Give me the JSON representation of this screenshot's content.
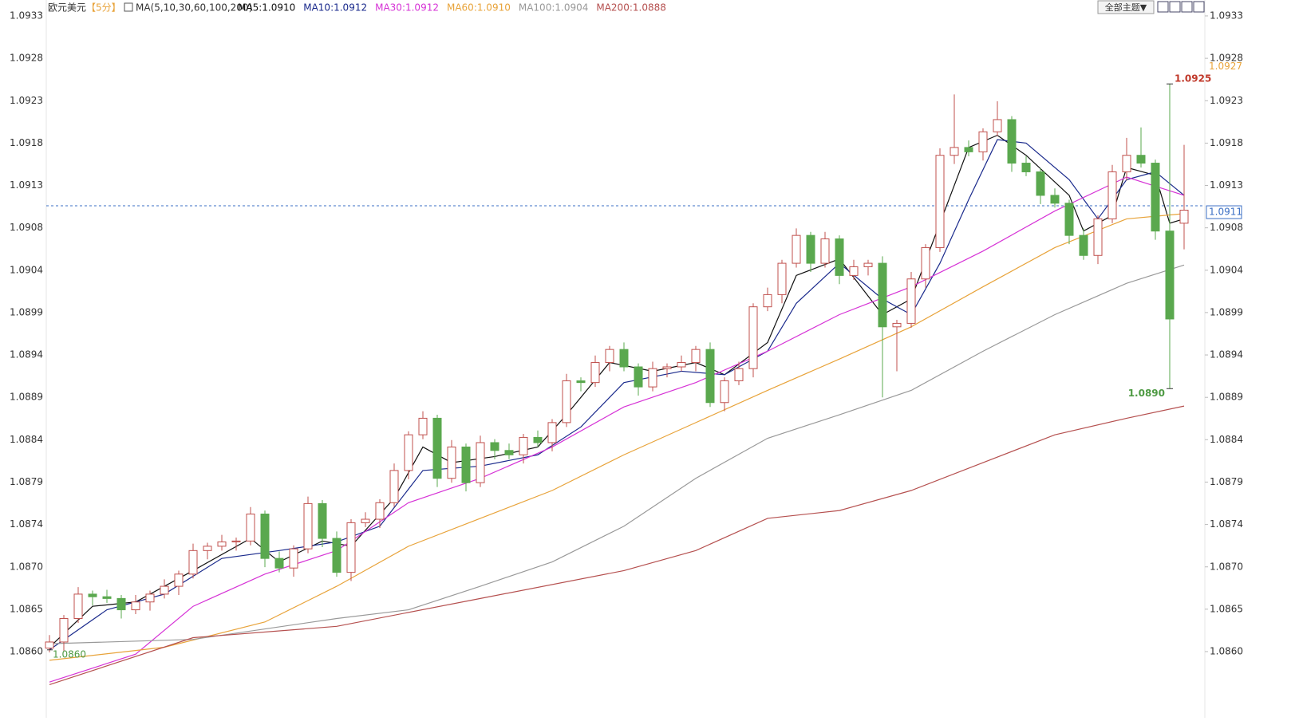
{
  "chart_data": {
    "type": "candlestick",
    "title": "欧元美元",
    "subtitle": "【5分】",
    "indicator_label": "MA(5,10,30,60,100,200)",
    "toolbar_button": "全部主题▼",
    "up_color": "#c0504d",
    "down_color": "#5aa84e",
    "ylim": [
      1.08554,
      1.093418
    ],
    "yticks": [
      {
        "value": 1.08598,
        "label": "1.0860"
      },
      {
        "value": 1.086467,
        "label": "1.0865"
      },
      {
        "value": 1.086953,
        "label": "1.0870"
      },
      {
        "value": 1.08744,
        "label": "1.0874"
      },
      {
        "value": 1.087927,
        "label": "1.0879"
      },
      {
        "value": 1.088414,
        "label": "1.0884"
      },
      {
        "value": 1.0889,
        "label": "1.0889"
      },
      {
        "value": 1.089387,
        "label": "1.0894"
      },
      {
        "value": 1.089874,
        "label": "1.0899"
      },
      {
        "value": 1.09036,
        "label": "1.0904"
      },
      {
        "value": 1.090847,
        "label": "1.0908"
      },
      {
        "value": 1.091334,
        "label": "1.0913"
      },
      {
        "value": 1.09182,
        "label": "1.0918"
      },
      {
        "value": 1.092307,
        "label": "1.0923"
      },
      {
        "value": 1.092794,
        "label": "1.0928"
      },
      {
        "value": 1.093281,
        "label": "1.0933"
      }
    ],
    "open": [
      1.08602,
      1.08609,
      1.08636,
      1.08664,
      1.08661,
      1.08659,
      1.08646,
      1.08655,
      1.08664,
      1.08673,
      1.08687,
      1.08714,
      1.08719,
      1.08724,
      1.08725,
      1.08756,
      1.08705,
      1.08694,
      1.08716,
      1.08768,
      1.08728,
      1.08689,
      1.08746,
      1.0875,
      1.08769,
      1.08806,
      1.08847,
      1.08866,
      1.08797,
      1.08833,
      1.08792,
      1.08838,
      1.08829,
      1.08824,
      1.08844,
      1.08838,
      1.08861,
      1.08909,
      1.08907,
      1.0893,
      1.08945,
      1.08925,
      1.08902,
      1.08923,
      1.08925,
      1.0893,
      1.08945,
      1.08884,
      1.08909,
      1.08923,
      1.08994,
      1.09008,
      1.09044,
      1.09076,
      1.09044,
      1.09072,
      1.0903,
      1.0904,
      1.09044,
      1.08971,
      1.08975,
      1.09026,
      1.09062,
      1.09168,
      1.09177,
      1.09172,
      1.09195,
      1.09209,
      1.09159,
      1.09149,
      1.09122,
      1.09113,
      1.09076,
      1.09053,
      1.09095,
      1.09149,
      1.09168,
      1.09159,
      1.09081,
      1.0909
    ],
    "high": [
      1.08617,
      1.0864,
      1.08672,
      1.08668,
      1.08669,
      1.08663,
      1.08663,
      1.08668,
      1.08681,
      1.08691,
      1.08722,
      1.08723,
      1.08732,
      1.08729,
      1.08764,
      1.0876,
      1.08713,
      1.0872,
      1.08776,
      1.08772,
      1.08736,
      1.0875,
      1.08758,
      1.08773,
      1.08814,
      1.08851,
      1.08874,
      1.0887,
      1.08841,
      1.08837,
      1.08846,
      1.08842,
      1.08837,
      1.08848,
      1.08852,
      1.08865,
      1.08917,
      1.08913,
      1.08938,
      1.08949,
      1.08953,
      1.08929,
      1.08931,
      1.08929,
      1.08938,
      1.08949,
      1.08953,
      1.08913,
      1.08931,
      1.08998,
      1.09016,
      1.09048,
      1.09084,
      1.0908,
      1.0908,
      1.09076,
      1.09048,
      1.09048,
      1.09052,
      1.08979,
      1.09034,
      1.09066,
      1.09176,
      1.09238,
      1.09185,
      1.09199,
      1.0923,
      1.09213,
      1.09167,
      1.09153,
      1.0913,
      1.09117,
      1.09084,
      1.09099,
      1.09157,
      1.09188,
      1.092,
      1.09163,
      1.0925,
      1.0918
    ],
    "low": [
      1.08597,
      1.08599,
      1.08631,
      1.08651,
      1.08654,
      1.08636,
      1.08641,
      1.08645,
      1.08659,
      1.08663,
      1.08682,
      1.08704,
      1.08714,
      1.08714,
      1.0872,
      1.08695,
      1.08689,
      1.08684,
      1.08711,
      1.08718,
      1.08684,
      1.08679,
      1.08741,
      1.0874,
      1.08764,
      1.08796,
      1.08842,
      1.08787,
      1.08792,
      1.08782,
      1.08787,
      1.08819,
      1.08819,
      1.08814,
      1.08833,
      1.08828,
      1.08856,
      1.08897,
      1.08902,
      1.0892,
      1.0892,
      1.08892,
      1.08897,
      1.08913,
      1.0892,
      1.0892,
      1.08879,
      1.08874,
      1.08904,
      1.08913,
      1.08989,
      1.08998,
      1.09039,
      1.09034,
      1.09039,
      1.0902,
      1.09025,
      1.0903,
      1.0889,
      1.0892,
      1.0897,
      1.09016,
      1.09057,
      1.09158,
      1.09167,
      1.09162,
      1.0919,
      1.09149,
      1.09144,
      1.09112,
      1.09108,
      1.09066,
      1.09048,
      1.09043,
      1.0909,
      1.09139,
      1.09154,
      1.09071,
      1.089,
      1.0906
    ],
    "close": [
      1.08609,
      1.08636,
      1.08664,
      1.08661,
      1.08659,
      1.08646,
      1.08655,
      1.08664,
      1.08673,
      1.08687,
      1.08714,
      1.08719,
      1.08724,
      1.08725,
      1.08756,
      1.08705,
      1.08694,
      1.08716,
      1.08768,
      1.08728,
      1.08689,
      1.08746,
      1.0875,
      1.08769,
      1.08806,
      1.08847,
      1.08866,
      1.08797,
      1.08833,
      1.08792,
      1.08838,
      1.08829,
      1.08824,
      1.08844,
      1.08838,
      1.08861,
      1.08909,
      1.08907,
      1.0893,
      1.08945,
      1.08925,
      1.08902,
      1.08923,
      1.08925,
      1.0893,
      1.08945,
      1.08884,
      1.08909,
      1.08923,
      1.08994,
      1.09008,
      1.09044,
      1.09076,
      1.09044,
      1.09072,
      1.0903,
      1.0904,
      1.09044,
      1.08971,
      1.08975,
      1.09026,
      1.09062,
      1.09168,
      1.09177,
      1.09172,
      1.09195,
      1.09209,
      1.09159,
      1.09149,
      1.09122,
      1.09113,
      1.09076,
      1.09053,
      1.09095,
      1.09149,
      1.09168,
      1.09159,
      1.09081,
      1.0898,
      1.09105
    ],
    "moving_averages": [
      {
        "name": "MA5:1.0910",
        "color": "#111111",
        "x": [
          0,
          3,
          6,
          10,
          14,
          16,
          19,
          21,
          24,
          26,
          28,
          31,
          34,
          36,
          39,
          42,
          45,
          47,
          50,
          52,
          55,
          58,
          60,
          62,
          64,
          66,
          68,
          71,
          72,
          74,
          75,
          77,
          78,
          79
        ],
        "values": [
          1.08603,
          1.0865,
          1.08655,
          1.08691,
          1.08728,
          1.08701,
          1.08725,
          1.08719,
          1.08774,
          1.08833,
          1.08815,
          1.08822,
          1.08833,
          1.0887,
          1.0893,
          1.0892,
          1.0893,
          1.08916,
          1.08953,
          1.0903,
          1.09049,
          1.08985,
          1.09003,
          1.0909,
          1.09177,
          1.09191,
          1.09168,
          1.09122,
          1.09081,
          1.09099,
          1.09154,
          1.09145,
          1.0909,
          1.09095
        ]
      },
      {
        "name": "MA10:1.0912",
        "color": "#1a2a8c",
        "x": [
          0,
          4,
          8,
          12,
          16,
          20,
          23,
          26,
          30,
          34,
          37,
          40,
          44,
          47,
          50,
          52,
          55,
          58,
          60,
          62,
          64,
          66,
          68,
          71,
          73,
          75,
          77,
          79
        ],
        "values": [
          1.086,
          1.08646,
          1.08664,
          1.08705,
          1.08714,
          1.08724,
          1.08742,
          1.08806,
          1.08811,
          1.08824,
          1.08856,
          1.08907,
          1.0892,
          1.08916,
          1.08943,
          1.08998,
          1.09044,
          1.09003,
          1.08985,
          1.09044,
          1.09117,
          1.09186,
          1.09182,
          1.0914,
          1.09095,
          1.0914,
          1.09149,
          1.09122
        ]
      },
      {
        "name": "MA30:1.0912",
        "color": "#d633d6",
        "x": [
          0,
          6,
          10,
          15,
          20,
          25,
          30,
          35,
          40,
          45,
          50,
          55,
          60,
          65,
          70,
          75,
          79
        ],
        "values": [
          1.08563,
          1.08595,
          1.0865,
          1.08687,
          1.08714,
          1.08769,
          1.08797,
          1.08833,
          1.08879,
          1.08907,
          1.08943,
          1.08985,
          1.09017,
          1.09058,
          1.09104,
          1.09143,
          1.09122
        ]
      },
      {
        "name": "MA60:1.0910",
        "color": "#e8a33a",
        "x": [
          0,
          8,
          15,
          20,
          25,
          30,
          35,
          40,
          45,
          50,
          55,
          60,
          65,
          70,
          75,
          79
        ],
        "values": [
          1.08588,
          1.08603,
          1.08632,
          1.08673,
          1.08719,
          1.08751,
          1.08783,
          1.08824,
          1.08861,
          1.08898,
          1.08934,
          1.08971,
          1.09017,
          1.09062,
          1.09095,
          1.09101
        ]
      },
      {
        "name": "MA100:1.0904",
        "color": "#999999",
        "x": [
          0,
          10,
          20,
          25,
          30,
          35,
          40,
          45,
          50,
          55,
          60,
          65,
          70,
          75,
          79
        ],
        "values": [
          1.08607,
          1.08612,
          1.08636,
          1.08646,
          1.08673,
          1.08701,
          1.08742,
          1.08797,
          1.08843,
          1.0887,
          1.08898,
          1.08943,
          1.08985,
          1.09021,
          1.09042
        ]
      },
      {
        "name": "MA200:1.0888",
        "color": "#b5504f",
        "x": [
          0,
          10,
          20,
          30,
          40,
          45,
          50,
          55,
          60,
          65,
          70,
          75,
          79
        ],
        "values": [
          1.0856,
          1.08614,
          1.08627,
          1.08659,
          1.08691,
          1.08714,
          1.08751,
          1.0876,
          1.08783,
          1.08815,
          1.08847,
          1.08866,
          1.0888
        ]
      }
    ],
    "current_price": 1.0911,
    "price_marker": 1.0927,
    "high_annotation": 1.0925,
    "low_annotation": {
      "value": 1.089,
      "label": "1.0890"
    },
    "start_annotation": {
      "value": 1.086,
      "label": "1.0860"
    }
  }
}
